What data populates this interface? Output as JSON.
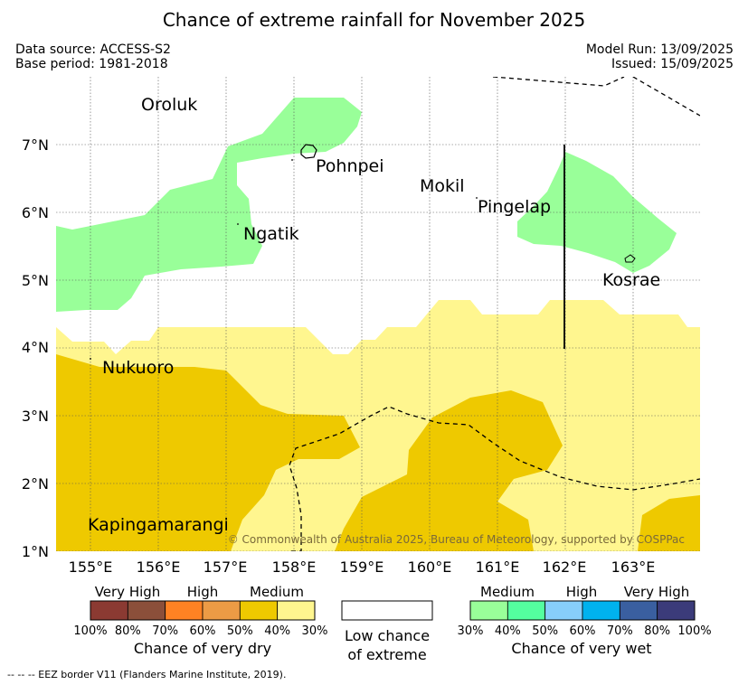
{
  "header": {
    "title": "Chance of extreme rainfall for November 2025",
    "data_source": "Data source: ACCESS-S2",
    "base_period": "Base period: 1981-2018",
    "model_run": "Model Run: 13/09/2025",
    "issued": "Issued: 15/09/2025"
  },
  "map": {
    "lat_labels": [
      "7°N",
      "6°N",
      "5°N",
      "4°N",
      "3°N",
      "2°N",
      "1°N"
    ],
    "lon_labels": [
      "155°E",
      "156°E",
      "157°E",
      "158°E",
      "159°E",
      "160°E",
      "161°E",
      "162°E",
      "163°E"
    ],
    "places": {
      "oroluk": "Oroluk",
      "pohnpei": "Pohnpei",
      "mokil": "Mokil",
      "pingelap": "Pingelap",
      "ngatik": "Ngatik",
      "kosrae": "Kosrae",
      "nukuoro": "Nukuoro",
      "kapingamarangi": "Kapingamarangi"
    },
    "copyright": "© Commonwealth of Australia 2025, Bureau of Meteorology, supported by COSPPac",
    "colors": {
      "wet_medium": "#99ff99",
      "dry_medium": "#fff68f",
      "dry_medium_dark": "#eec900"
    }
  },
  "legend": {
    "dry": {
      "labels": [
        "Very High",
        "High",
        "Medium"
      ],
      "ticks": [
        "100%",
        "80%",
        "70%",
        "60%",
        "50%",
        "40%",
        "30%"
      ],
      "colors": [
        "#8b3a32",
        "#8b4f3a",
        "#ff8223",
        "#ec9b45",
        "#eec900",
        "#fff68f"
      ],
      "caption": "Chance of very dry"
    },
    "neutral": {
      "caption_line1": "Low chance",
      "caption_line2": "of extreme",
      "color": "#ffffff"
    },
    "wet": {
      "labels": [
        "Medium",
        "High",
        "Very High"
      ],
      "ticks": [
        "30%",
        "40%",
        "50%",
        "60%",
        "70%",
        "80%",
        "100%"
      ],
      "colors": [
        "#99ff99",
        "#54ff9f",
        "#87cefa",
        "#00b2ee",
        "#3a5fa0",
        "#3b3b7a"
      ],
      "caption": "Chance of very wet"
    }
  },
  "footnote": "-- -- -- EEZ border V11 (Flanders Marine Institute, 2019)."
}
